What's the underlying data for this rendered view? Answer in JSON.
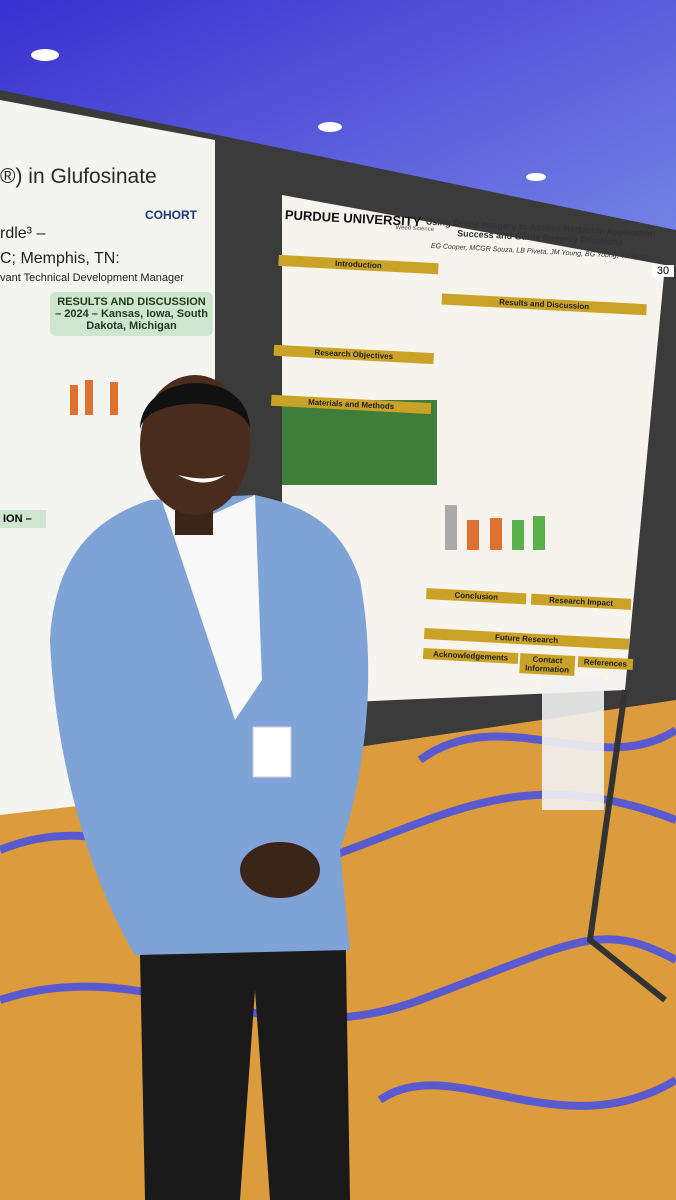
{
  "left_poster": {
    "title": "®) in Glufosinate",
    "author_line1": "rdle³ –",
    "author_line2": "C; Memphis, TN:",
    "author_role": "vant Technical Development Manager",
    "logo_text": "COHORT",
    "results_heading": "RESULTS AND DISCUSSION – 2024 – Kansas, Iowa, South Dakota, Michigan",
    "section_label": "ION –"
  },
  "right_poster": {
    "board_number": "30",
    "university": "PURDUE UNIVERSITY",
    "department": "Weed Science",
    "title": "Using Drone Imagery to Assess Herbicide Application Success and Guide Respray Decisions",
    "authors": "EG Cooper, MCGR Souza, LB Piveta, JM Young, BG Young, TR Butts",
    "sections": [
      "Introduction",
      "Research Objectives",
      "Materials and Methods",
      "Results and Discussion",
      "Conclusion",
      "Research Impact",
      "Future Research",
      "Acknowledgements",
      "Contact Information",
      "References"
    ]
  }
}
